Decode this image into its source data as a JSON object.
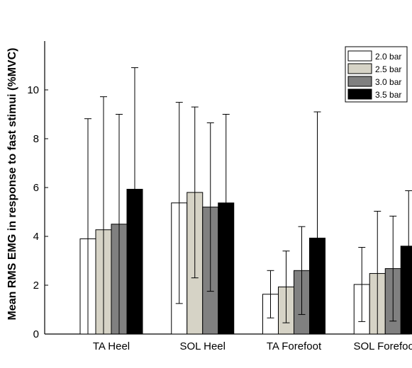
{
  "chart_data": {
    "type": "bar",
    "title": "",
    "xlabel": "",
    "ylabel": "Mean RMS EMG in response to fast stimui (%MVC)",
    "ylim": [
      0,
      12
    ],
    "yticks": [
      0,
      2,
      4,
      6,
      8,
      10
    ],
    "categories": [
      "TA Heel",
      "SOL Heel",
      "TA Forefoot",
      "SOL Forefoot"
    ],
    "legend_position": "top-right",
    "grid": false,
    "series": [
      {
        "name": "2.0 bar",
        "color": "#ffffff",
        "values": [
          3.9,
          5.37,
          1.63,
          2.03
        ],
        "errors": [
          4.92,
          4.12,
          0.97,
          1.52
        ]
      },
      {
        "name": "2.5 bar",
        "color": "#d6d3c6",
        "values": [
          4.27,
          5.8,
          1.93,
          2.48
        ],
        "errors": [
          5.45,
          3.5,
          1.47,
          2.55
        ]
      },
      {
        "name": "3.0 bar",
        "color": "#808080",
        "values": [
          4.5,
          5.2,
          2.6,
          2.68
        ],
        "errors": [
          4.5,
          3.45,
          1.8,
          2.15
        ]
      },
      {
        "name": "3.5 bar",
        "color": "#000000",
        "values": [
          5.93,
          5.37,
          3.93,
          3.6
        ],
        "errors": [
          4.98,
          3.63,
          5.17,
          2.27
        ]
      }
    ]
  }
}
